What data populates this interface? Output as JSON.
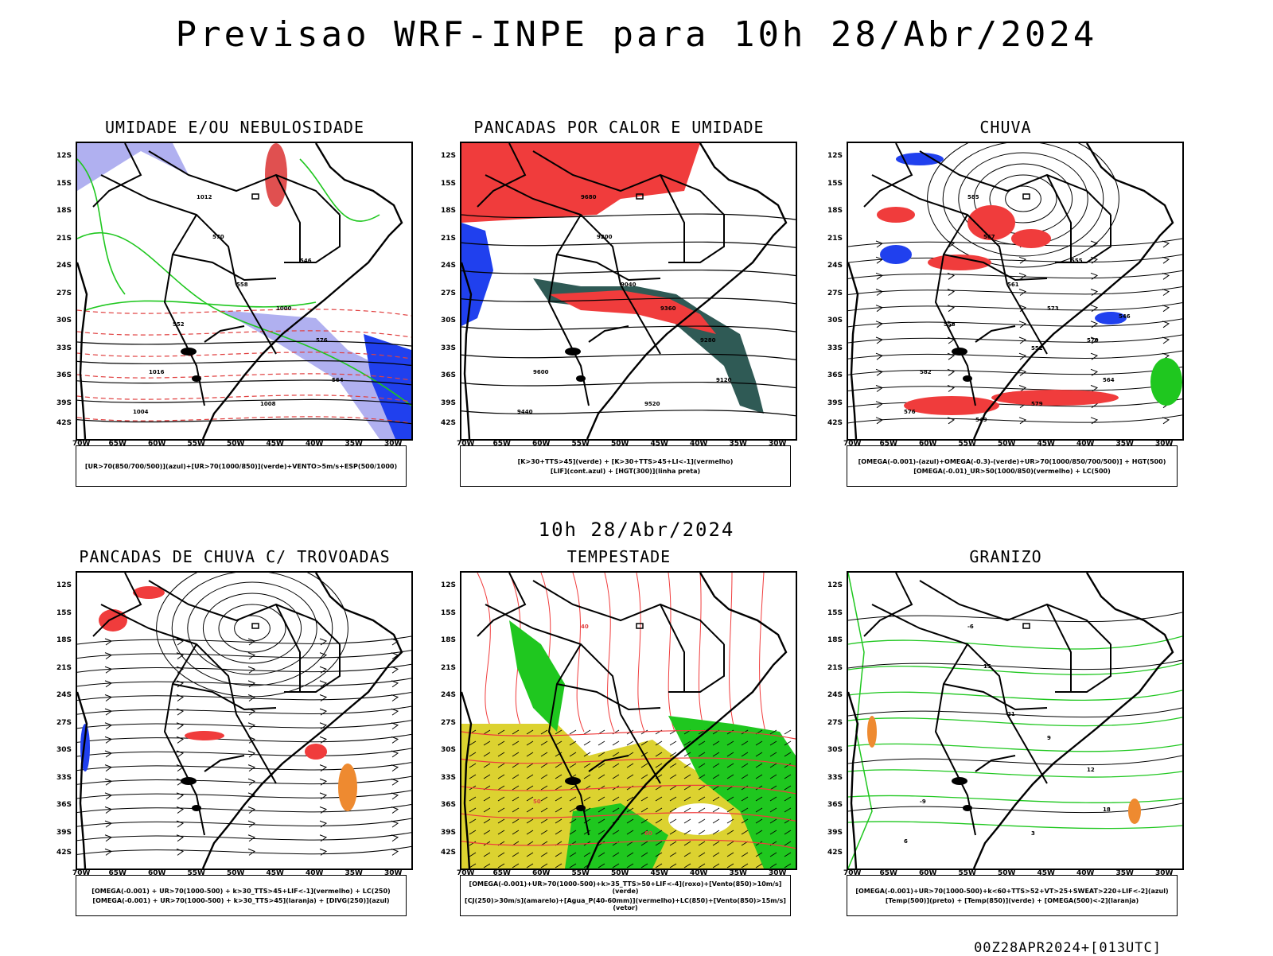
{
  "title": "Previsao WRF-INPE  para 10h 28/Abr/2024",
  "mid_title": "10h 28/Abr/2024",
  "footer": "00Z28APR2024+[013UTC]",
  "lat_labels": [
    "12S",
    "15S",
    "18S",
    "21S",
    "24S",
    "27S",
    "30S",
    "33S",
    "36S",
    "39S",
    "42S"
  ],
  "lon_labels": [
    "70W",
    "65W",
    "60W",
    "55W",
    "50W",
    "45W",
    "40W",
    "35W",
    "30W"
  ],
  "panels": [
    {
      "title": "UMIDADE E/OU NEBULOSIDADE",
      "legend": [
        "[UR>70(850/700/500)](azul)+[UR>70(1000/850)](verde)+VENTO>5m/s+ESP(500/1000)"
      ],
      "contour_labels": [
        "1012",
        "1016",
        "1008",
        "1004",
        "1000",
        "576",
        "570",
        "564",
        "558",
        "552",
        "546"
      ]
    },
    {
      "title": "PANCADAS POR CALOR E UMIDADE",
      "legend": [
        "[K>30+TTS>45](verde) + [K>30+TTS>45+LI<-1](vermelho)",
        "[LIF](cont.azul) + [HGT(300)](linha preta)"
      ],
      "contour_labels": [
        "9680",
        "9600",
        "9520",
        "9440",
        "9360",
        "9280",
        "9200",
        "9120",
        "9040"
      ]
    },
    {
      "title": "CHUVA",
      "legend": [
        "[OMEGA(-0.001)-(azul)+OMEGA(-0.3)-(verde)+UR>70(1000/850/700/500)] + HGT(500)",
        "[OMEGA(-0.01)_UR>50(1000/850)(vermelho) + LC(500)"
      ],
      "contour_labels": [
        "585",
        "582",
        "579",
        "576",
        "573",
        "570",
        "567",
        "564",
        "561",
        "558",
        "555",
        "552",
        "549",
        "546"
      ]
    },
    {
      "title": "PANCADAS DE CHUVA C/ TROVOADAS",
      "legend": [
        "[OMEGA(-0.001) + UR>70(1000-500) + k>30_TTS>45+LIF<-1](vermelho) + LC(250)",
        "[OMEGA(-0.001) + UR>70(1000-500) + k>30_TTS>45](laranja) + [DIVG(250)](azul)"
      ],
      "contour_labels": []
    },
    {
      "title": "TEMPESTADE",
      "legend": [
        "[OMEGA(-0.001)+UR>70(1000-500)+k>35_TTS>50+LIF<-4](roxo)+[Vento(850)>10m/s](verde)",
        "[CJ(250)>30m/s](amarelo)+[Agua_P(40-60mm)](vermelho)+LC(850)+[Vento(850)>15m/s](vetor)"
      ],
      "contour_labels": [
        "40",
        "50",
        "60"
      ]
    },
    {
      "title": "GRANIZO",
      "legend": [
        "[OMEGA(-0.001)+UR>70(1000-500)+k<60+TTS>52+VT>25+SWEAT>220+LIF<-2](azul)",
        "[Temp(500)](preto) + [Temp(850)](verde) + [OMEGA(500)<-2](laranja)"
      ],
      "contour_labels": [
        "-6",
        "-9",
        "3",
        "6",
        "9",
        "12",
        "15",
        "18",
        "21"
      ]
    }
  ],
  "colors": {
    "red": "#f03c3c",
    "green": "#1fc71f",
    "blue": "#2040ee",
    "lavender": "#b0b0f0",
    "yellow": "#dcd230",
    "darkteal": "#2f5a55",
    "orange": "#ee8a30",
    "black": "#000000"
  }
}
